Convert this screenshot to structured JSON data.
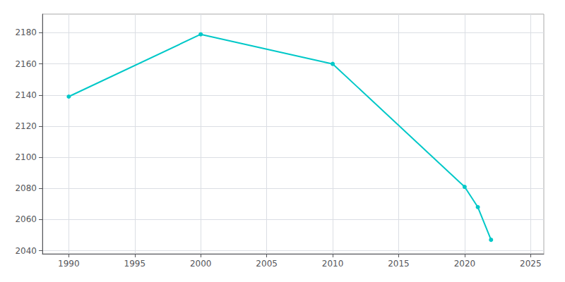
{
  "chart_data": {
    "type": "line",
    "x": [
      1990,
      2000,
      2010,
      2020,
      2021,
      2022
    ],
    "values": [
      2139,
      2179,
      2160,
      2081,
      2068,
      2047
    ],
    "color": "#00c8c8",
    "marker": "circle",
    "xlim": [
      1988,
      2026
    ],
    "ylim": [
      2038,
      2192
    ],
    "xticks": [
      1990,
      1995,
      2000,
      2005,
      2010,
      2015,
      2020,
      2025
    ],
    "yticks": [
      2040,
      2060,
      2080,
      2100,
      2120,
      2140,
      2160,
      2180
    ],
    "grid": true
  }
}
